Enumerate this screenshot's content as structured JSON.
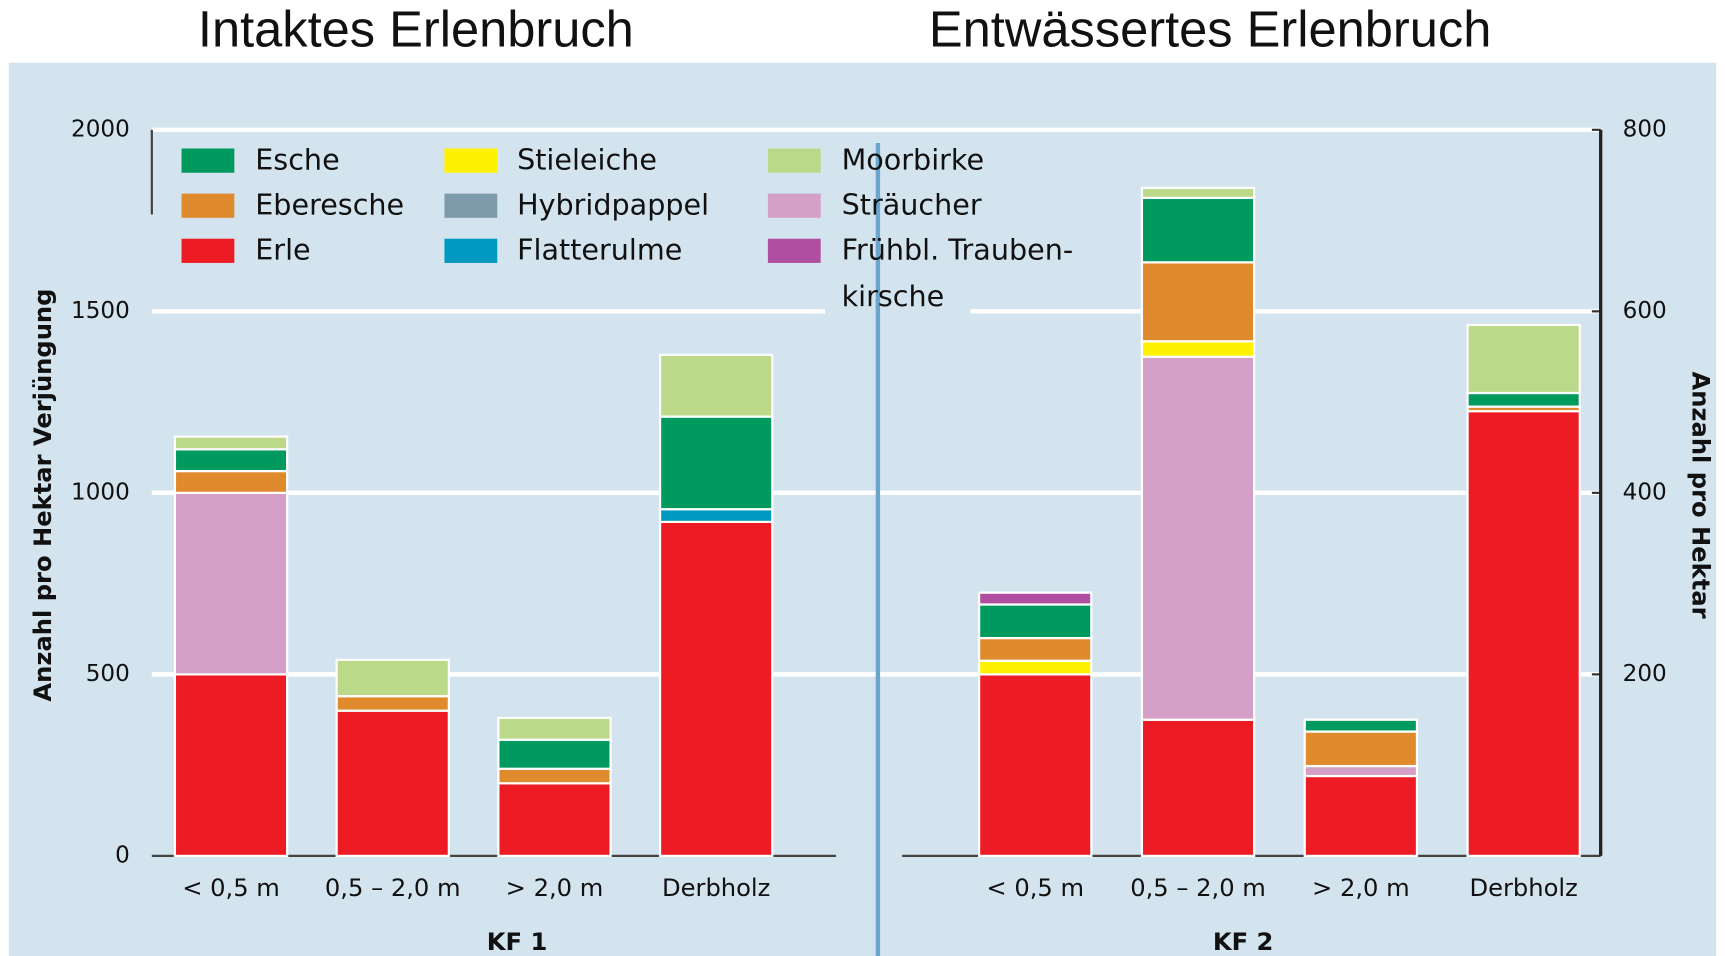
{
  "chart_data": [
    {
      "type": "bar",
      "stacked": true,
      "title": "Intaktes Erlenbruch",
      "xlabel": "KF 1",
      "ylabel": "Anzahl pro Hektar Verjüngung",
      "categories": [
        "< 0,5 m",
        "0,5 – 2,0 m",
        "> 2,0 m",
        "Derbholz"
      ],
      "ylim": [
        0,
        2000
      ],
      "yticks": [
        0,
        500,
        1000,
        1500,
        2000
      ],
      "grid": true,
      "series": [
        {
          "name": "Esche",
          "color": "#009a5e",
          "values": [
            60,
            0,
            80,
            255
          ]
        },
        {
          "name": "Eberesche",
          "color": "#e08a2e",
          "values": [
            60,
            40,
            40,
            0
          ]
        },
        {
          "name": "Erle",
          "color": "#ed1c24",
          "values": [
            500,
            400,
            200,
            920
          ]
        },
        {
          "name": "Stieleiche",
          "color": "#fff200",
          "values": [
            0,
            0,
            0,
            0
          ]
        },
        {
          "name": "Hybridpappel",
          "color": "#7f9aaa",
          "values": [
            0,
            0,
            0,
            0
          ]
        },
        {
          "name": "Flatterulme",
          "color": "#0099c0",
          "values": [
            0,
            0,
            0,
            35
          ]
        },
        {
          "name": "Moorbirke",
          "color": "#bcd98a",
          "values": [
            35,
            100,
            60,
            170
          ]
        },
        {
          "name": "Sträucher",
          "color": "#d4a0c8",
          "values": [
            500,
            0,
            0,
            0
          ]
        },
        {
          "name": "Frühbl. Trauben-\nkirsche",
          "color": "#b04fa0",
          "values": [
            0,
            0,
            0,
            0
          ]
        }
      ]
    },
    {
      "type": "bar",
      "stacked": true,
      "title": "Entwässertes Erlenbruch",
      "xlabel": "KF 2",
      "ylabel": "Anzahl pro Hektar",
      "categories": [
        "< 0,5 m",
        "0,5 – 2,0 m",
        "> 2,0 m",
        "Derbholz"
      ],
      "ylim": [
        0,
        800
      ],
      "yticks": [
        200,
        400,
        600,
        800
      ],
      "grid": true,
      "series": [
        {
          "values": [
            37,
            71,
            13,
            15
          ]
        },
        {
          "values": [
            25,
            87,
            38,
            5
          ]
        },
        {
          "values": [
            200,
            150,
            88,
            490
          ]
        },
        {
          "values": [
            15,
            17,
            0,
            0
          ]
        },
        {
          "values": [
            0,
            0,
            0,
            0
          ]
        },
        {
          "values": [
            0,
            0,
            0,
            0
          ]
        },
        {
          "values": [
            0,
            11,
            0,
            75
          ]
        },
        {
          "values": [
            0,
            400,
            11,
            0
          ]
        },
        {
          "values": [
            13,
            0,
            0,
            0
          ]
        }
      ]
    }
  ]
}
